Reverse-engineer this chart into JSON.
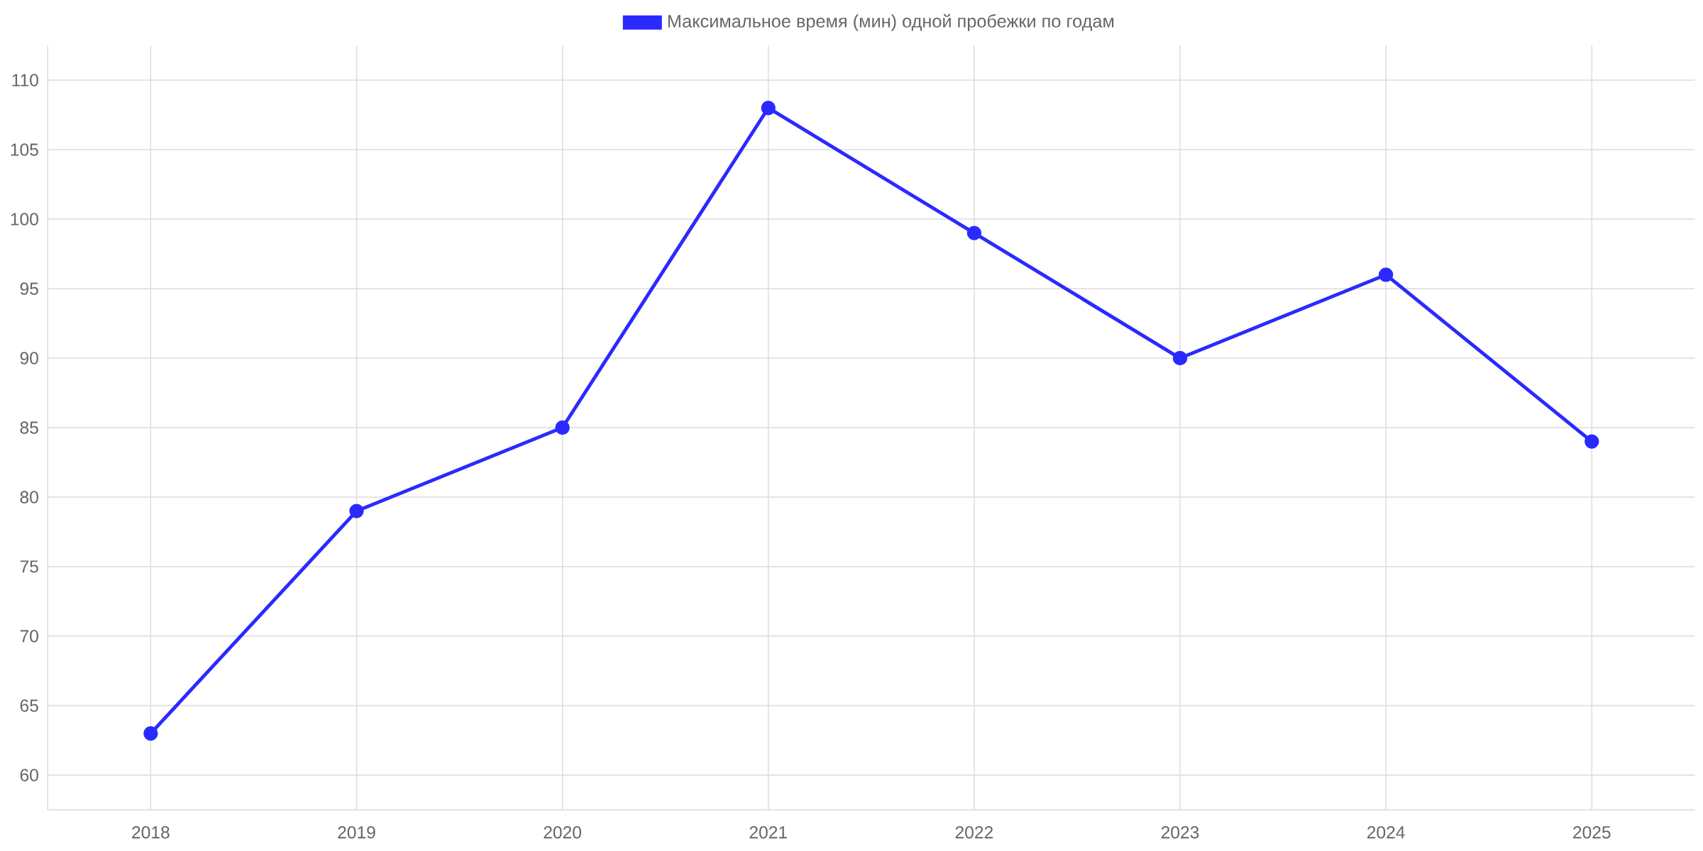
{
  "chart_data": {
    "type": "line",
    "categories": [
      "2018",
      "2019",
      "2020",
      "2021",
      "2022",
      "2023",
      "2024",
      "2025"
    ],
    "series": [
      {
        "name": "Максимальное время (мин) одной пробежки по годам",
        "color": "#2a2aff",
        "values": [
          63,
          79,
          85,
          108,
          99,
          90,
          96,
          84
        ]
      }
    ],
    "ylim": [
      57.5,
      112.5
    ],
    "yticks": [
      60,
      65,
      70,
      75,
      80,
      85,
      90,
      95,
      100,
      105,
      110
    ],
    "grid": true,
    "legend": "top",
    "marker": "circle",
    "line_style": "solid"
  }
}
